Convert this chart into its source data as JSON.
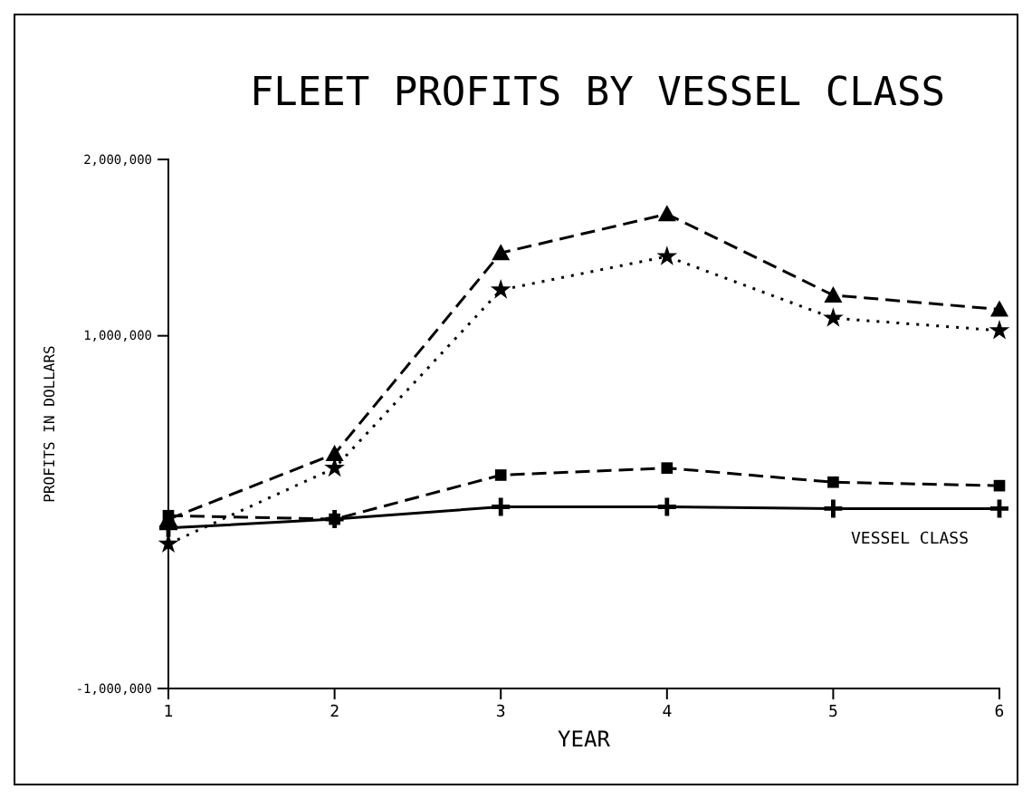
{
  "chart_data": {
    "type": "line",
    "title": "FLEET PROFITS BY VESSEL CLASS",
    "xlabel": "YEAR",
    "ylabel": "PROFITS IN DOLLARS",
    "annotations": [
      "VESSEL CLASS"
    ],
    "x": [
      1,
      2,
      3,
      4,
      5,
      6
    ],
    "xlim": [
      1,
      6
    ],
    "xticks": [
      1,
      2,
      3,
      4,
      5,
      6
    ],
    "ylim": [
      -1000000,
      2000000
    ],
    "yticks": [
      {
        "value": -1000000,
        "label": "-1,000,000"
      },
      {
        "value": 1000000,
        "label": "1,000,000"
      },
      {
        "value": 2000000,
        "label": "2,000,000"
      }
    ],
    "series": [
      {
        "color": "#000000",
        "marker": "triangle",
        "line_style": "dashed",
        "values": [
          -40000,
          330000,
          1470000,
          1690000,
          1230000,
          1150000
        ]
      },
      {
        "color": "#000000",
        "marker": "star",
        "line_style": "dotted",
        "values": [
          -180000,
          250000,
          1260000,
          1450000,
          1100000,
          1030000
        ]
      },
      {
        "color": "#000000",
        "marker": "square",
        "line_style": "dashed",
        "values": [
          -20000,
          -40000,
          210000,
          250000,
          170000,
          150000
        ]
      },
      {
        "color": "#000000",
        "marker": "cross",
        "line_style": "solid",
        "values": [
          -90000,
          -40000,
          30000,
          30000,
          20000,
          20000
        ]
      }
    ]
  }
}
